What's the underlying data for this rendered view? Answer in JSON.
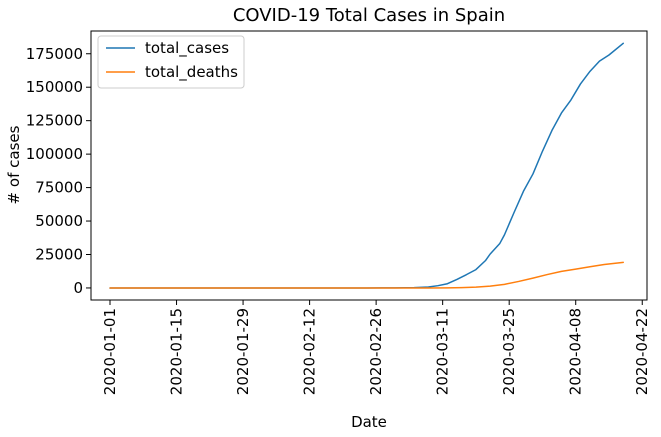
{
  "chart_data": {
    "type": "line",
    "title": "COVID-19 Total Cases in Spain",
    "xlabel": "Date",
    "ylabel": "# of cases",
    "xlim": [
      "2019-12-28",
      "2020-04-23"
    ],
    "ylim": [
      -9000,
      192000
    ],
    "x_ticks": [
      "2020-01-01",
      "2020-01-15",
      "2020-01-29",
      "2020-02-12",
      "2020-02-26",
      "2020-03-11",
      "2020-03-25",
      "2020-04-08",
      "2020-04-22"
    ],
    "y_ticks": [
      0,
      25000,
      50000,
      75000,
      100000,
      125000,
      150000,
      175000
    ],
    "legend_position": "upper-left",
    "series": [
      {
        "name": "total_cases",
        "color": "#1f77b4",
        "points": [
          [
            "2020-01-01",
            0
          ],
          [
            "2020-01-31",
            0
          ],
          [
            "2020-02-24",
            2
          ],
          [
            "2020-03-01",
            84
          ],
          [
            "2020-03-05",
            282
          ],
          [
            "2020-03-08",
            674
          ],
          [
            "2020-03-10",
            1695
          ],
          [
            "2020-03-12",
            3146
          ],
          [
            "2020-03-14",
            6391
          ],
          [
            "2020-03-16",
            9942
          ],
          [
            "2020-03-18",
            13716
          ],
          [
            "2020-03-20",
            20410
          ],
          [
            "2020-03-21",
            25374
          ],
          [
            "2020-03-23",
            33089
          ],
          [
            "2020-03-24",
            39673
          ],
          [
            "2020-03-26",
            56188
          ],
          [
            "2020-03-28",
            72248
          ],
          [
            "2020-03-30",
            85195
          ],
          [
            "2020-04-01",
            102136
          ],
          [
            "2020-04-03",
            117710
          ],
          [
            "2020-04-05",
            130759
          ],
          [
            "2020-04-07",
            140510
          ],
          [
            "2020-04-09",
            152446
          ],
          [
            "2020-04-11",
            161852
          ],
          [
            "2020-04-13",
            169496
          ],
          [
            "2020-04-15",
            174060
          ],
          [
            "2020-04-18",
            182816
          ]
        ]
      },
      {
        "name": "total_deaths",
        "color": "#ff7f0e",
        "points": [
          [
            "2020-01-01",
            0
          ],
          [
            "2020-03-03",
            0
          ],
          [
            "2020-03-08",
            10
          ],
          [
            "2020-03-12",
            84
          ],
          [
            "2020-03-15",
            288
          ],
          [
            "2020-03-18",
            598
          ],
          [
            "2020-03-21",
            1381
          ],
          [
            "2020-03-24",
            2696
          ],
          [
            "2020-03-27",
            4858
          ],
          [
            "2020-03-30",
            7340
          ],
          [
            "2020-04-02",
            10003
          ],
          [
            "2020-04-05",
            12418
          ],
          [
            "2020-04-08",
            14045
          ],
          [
            "2020-04-11",
            15843
          ],
          [
            "2020-04-14",
            17489
          ],
          [
            "2020-04-18",
            19130
          ]
        ]
      }
    ]
  }
}
